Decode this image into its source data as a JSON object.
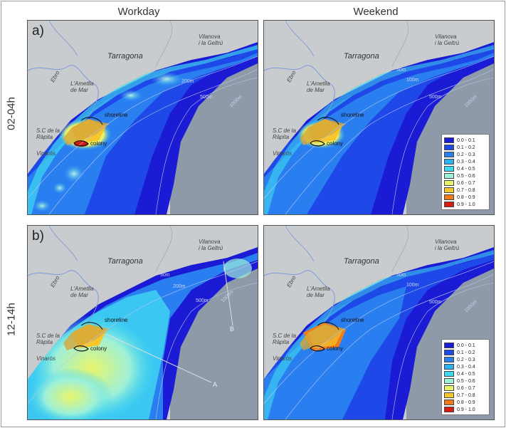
{
  "columns": {
    "left": "Workday",
    "right": "Weekend"
  },
  "rows": {
    "top": "02-04h",
    "bottom": "12-14h"
  },
  "panel_letters": {
    "top": "a)",
    "bottom": "b)"
  },
  "place_labels": {
    "tarragona": "Tarragona",
    "vilanova_line1": "Vilanova",
    "vilanova_line2": "i la Geltrú",
    "ebro": "Ebro",
    "ametlla_line1": "L'Ametlla",
    "ametlla_line2": "de Mar",
    "rapita_line1": "S.C de la",
    "rapita_line2": "Ràpita",
    "vinaros": "Vinaròs",
    "shoreline": "shoreline",
    "colony": "colony"
  },
  "depth_labels": {
    "d50": "50m",
    "d100": "100m",
    "d200": "200m",
    "d500": "500m",
    "d1000": "1000m"
  },
  "transects": {
    "a": "A",
    "b": "B"
  },
  "legend": {
    "items": [
      {
        "label": "0.0 - 0.1",
        "color": "#1b1bd6"
      },
      {
        "label": "0.1 - 0.2",
        "color": "#1e48e8"
      },
      {
        "label": "0.2 - 0.3",
        "color": "#2a7ff0"
      },
      {
        "label": "0.3 - 0.4",
        "color": "#30b2f2"
      },
      {
        "label": "0.4 - 0.5",
        "color": "#40d9f2"
      },
      {
        "label": "0.5 - 0.6",
        "color": "#9ef0d8"
      },
      {
        "label": "0.6 - 0.7",
        "color": "#e8f56a"
      },
      {
        "label": "0.7 - 0.8",
        "color": "#f6c62c"
      },
      {
        "label": "0.8 - 0.9",
        "color": "#f07a1c"
      },
      {
        "label": "0.9 - 1.0",
        "color": "#d81a10"
      }
    ]
  },
  "colors": {
    "land": "#c9ccce",
    "deep_sea": "#8e9aa8",
    "river": "#7a9ad8"
  }
}
